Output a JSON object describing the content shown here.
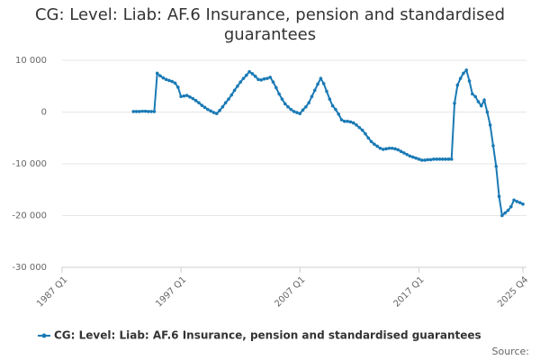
{
  "chart_data": {
    "type": "line",
    "title": "CG: Level: Liab: AF.6 Insurance, pension and standardised guarantees",
    "source": "Source:",
    "categories": [
      "1987 Q1",
      null,
      null,
      null,
      null,
      null,
      null,
      null,
      null,
      null,
      null,
      null,
      null,
      null,
      null,
      null,
      null,
      null,
      null,
      null,
      null,
      null,
      null,
      null,
      null,
      null,
      null,
      null,
      null,
      null,
      null,
      null,
      null,
      null,
      null,
      null,
      null,
      null,
      null,
      null,
      "1997 Q1",
      null,
      null,
      null,
      null,
      null,
      null,
      null,
      null,
      null,
      null,
      null,
      null,
      null,
      null,
      null,
      null,
      null,
      null,
      null,
      null,
      null,
      null,
      null,
      null,
      null,
      null,
      null,
      null,
      null,
      null,
      null,
      null,
      null,
      null,
      null,
      null,
      null,
      null,
      null,
      "2007 Q1",
      null,
      null,
      null,
      null,
      null,
      null,
      null,
      null,
      null,
      null,
      null,
      null,
      null,
      null,
      null,
      null,
      null,
      null,
      null,
      null,
      null,
      null,
      null,
      null,
      null,
      null,
      null,
      null,
      null,
      null,
      null,
      null,
      null,
      null,
      null,
      null,
      null,
      null,
      null,
      "2017 Q1",
      null,
      null,
      null,
      null,
      null,
      null,
      null,
      null,
      null,
      null,
      null,
      null,
      null,
      null,
      null,
      null,
      null,
      null,
      null,
      null,
      null,
      null,
      null,
      null,
      null,
      null,
      null,
      null,
      null,
      null,
      null,
      null,
      null,
      null,
      "2025 Q4"
    ],
    "series": [
      {
        "name": "CG: Level: Liab: AF.6 Insurance, pension and standardised guarantees",
        "color": "#1a7ab5",
        "values": [
          null,
          null,
          null,
          null,
          null,
          null,
          null,
          null,
          null,
          null,
          null,
          null,
          null,
          null,
          null,
          null,
          null,
          null,
          null,
          null,
          null,
          null,
          null,
          null,
          100,
          100,
          100,
          150,
          150,
          100,
          100,
          100,
          7500,
          7000,
          6600,
          6300,
          6100,
          5900,
          5600,
          4800,
          3000,
          3100,
          3200,
          2900,
          2600,
          2200,
          1800,
          1300,
          900,
          500,
          200,
          -100,
          -300,
          300,
          1000,
          1800,
          2500,
          3300,
          4200,
          5000,
          5800,
          6500,
          7100,
          7800,
          7400,
          6900,
          6300,
          6200,
          6400,
          6500,
          6700,
          5800,
          4700,
          3500,
          2500,
          1600,
          1000,
          500,
          100,
          -100,
          -300,
          400,
          1000,
          1800,
          3000,
          4200,
          5400,
          6500,
          5500,
          4000,
          2500,
          1200,
          500,
          -400,
          -1500,
          -1800,
          -1800,
          -1900,
          -2100,
          -2500,
          -3000,
          -3500,
          -4200,
          -5000,
          -5700,
          -6200,
          -6600,
          -7000,
          -7200,
          -7100,
          -7000,
          -7000,
          -7100,
          -7300,
          -7600,
          -7900,
          -8200,
          -8500,
          -8700,
          -8900,
          -9100,
          -9300,
          -9300,
          -9200,
          -9200,
          -9100,
          -9100,
          -9100,
          -9100,
          -9100,
          -9100,
          -9100,
          1700,
          5200,
          6500,
          7500,
          8100,
          6000,
          3500,
          3000,
          2000,
          1200,
          2300,
          0,
          -2500,
          -6500,
          -10500,
          -16300,
          -20000,
          -19500,
          -19000,
          -18300,
          -17000,
          -17300,
          -17500,
          -17800
        ]
      }
    ],
    "ylim": [
      -30000,
      10000
    ],
    "yticks": [
      {
        "value": -30000,
        "label": "-30 000"
      },
      {
        "value": -20000,
        "label": "-20 000"
      },
      {
        "value": -10000,
        "label": "-10 000"
      },
      0,
      {
        "value": 10000,
        "label": "10 000"
      }
    ],
    "grid": true
  }
}
